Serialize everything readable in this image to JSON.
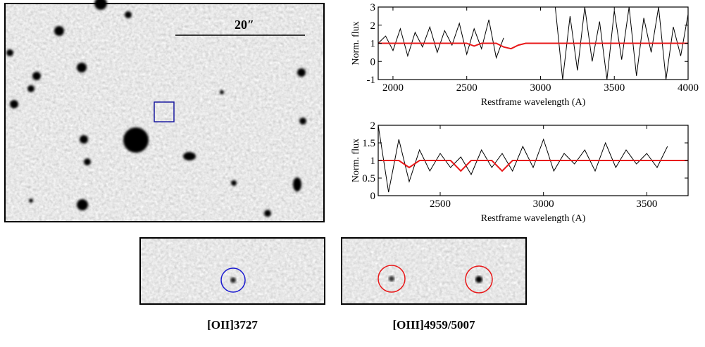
{
  "image": {
    "scale_label": "20″"
  },
  "captions": [
    "[OII]3727",
    "[OIII]4959/5007"
  ],
  "chart_data": [
    {
      "type": "line",
      "xlabel": "Restframe wavelength (A)",
      "ylabel": "Norm. flux",
      "xlim": [
        1900,
        4000
      ],
      "ylim": [
        -1,
        3
      ],
      "xticks": [
        2000,
        2500,
        3000,
        3500,
        4000
      ],
      "yticks": [
        -1,
        0,
        1,
        2,
        3
      ],
      "x": [
        1900,
        1950,
        2000,
        2050,
        2100,
        2150,
        2200,
        2250,
        2300,
        2350,
        2400,
        2450,
        2500,
        2550,
        2600,
        2650,
        2700,
        2750,
        2800,
        2850,
        2900,
        2950,
        3000,
        3050,
        3100,
        3150,
        3200,
        3250,
        3300,
        3350,
        3400,
        3450,
        3500,
        3550,
        3600,
        3650,
        3700,
        3750,
        3800,
        3850,
        3900,
        3950,
        4000
      ],
      "series": [
        {
          "color": "#000000",
          "values": [
            1.0,
            1.4,
            0.6,
            1.8,
            0.3,
            1.6,
            0.8,
            1.9,
            0.5,
            1.7,
            0.9,
            2.1,
            0.4,
            1.8,
            0.7,
            2.3,
            0.2,
            1.3,
            null,
            null,
            null,
            null,
            null,
            null,
            3,
            -1,
            2.5,
            -0.5,
            3,
            0,
            2.2,
            -1,
            2.8,
            0.1,
            3,
            -0.8,
            2.4,
            0.5,
            3,
            -1,
            1.9,
            0.3,
            2.6
          ]
        },
        {
          "color": "#e8191a",
          "values": [
            1,
            1,
            1,
            1,
            1,
            1,
            1,
            1,
            1,
            1,
            1,
            1,
            1,
            0.85,
            1,
            1,
            1,
            0.8,
            0.7,
            0.9,
            1,
            1,
            1,
            1,
            1,
            1,
            1,
            1,
            1,
            1,
            1,
            1,
            1,
            1,
            1,
            1,
            1,
            1,
            1,
            1,
            1,
            1,
            1
          ]
        }
      ]
    },
    {
      "type": "line",
      "xlabel": "Restframe wavelength (A)",
      "ylabel": "Norm. flux",
      "xlim": [
        2200,
        3700
      ],
      "ylim": [
        0,
        2
      ],
      "xticks": [
        2500,
        3000,
        3500
      ],
      "yticks": [
        0,
        0.5,
        1,
        1.5,
        2
      ],
      "x": [
        2200,
        2250,
        2300,
        2350,
        2400,
        2450,
        2500,
        2550,
        2600,
        2650,
        2700,
        2750,
        2800,
        2850,
        2900,
        2950,
        3000,
        3050,
        3100,
        3150,
        3200,
        3250,
        3300,
        3350,
        3400,
        3450,
        3500,
        3550,
        3600,
        3650,
        3700
      ],
      "series": [
        {
          "color": "#000000",
          "values": [
            2,
            0.1,
            1.6,
            0.4,
            1.3,
            0.7,
            1.2,
            0.8,
            1.1,
            0.6,
            1.3,
            0.8,
            1.2,
            0.7,
            1.4,
            0.8,
            1.6,
            0.7,
            1.2,
            0.9,
            1.3,
            0.7,
            1.5,
            0.8,
            1.3,
            0.9,
            1.2,
            0.8,
            1.4,
            null,
            null
          ]
        },
        {
          "color": "#e8191a",
          "values": [
            1,
            1,
            1,
            0.8,
            1,
            1,
            1,
            1,
            0.7,
            1,
            1,
            1,
            0.7,
            1,
            1,
            1,
            1,
            1,
            1,
            1,
            1,
            1,
            1,
            1,
            1,
            1,
            1,
            1,
            1,
            1,
            1
          ]
        }
      ]
    }
  ]
}
